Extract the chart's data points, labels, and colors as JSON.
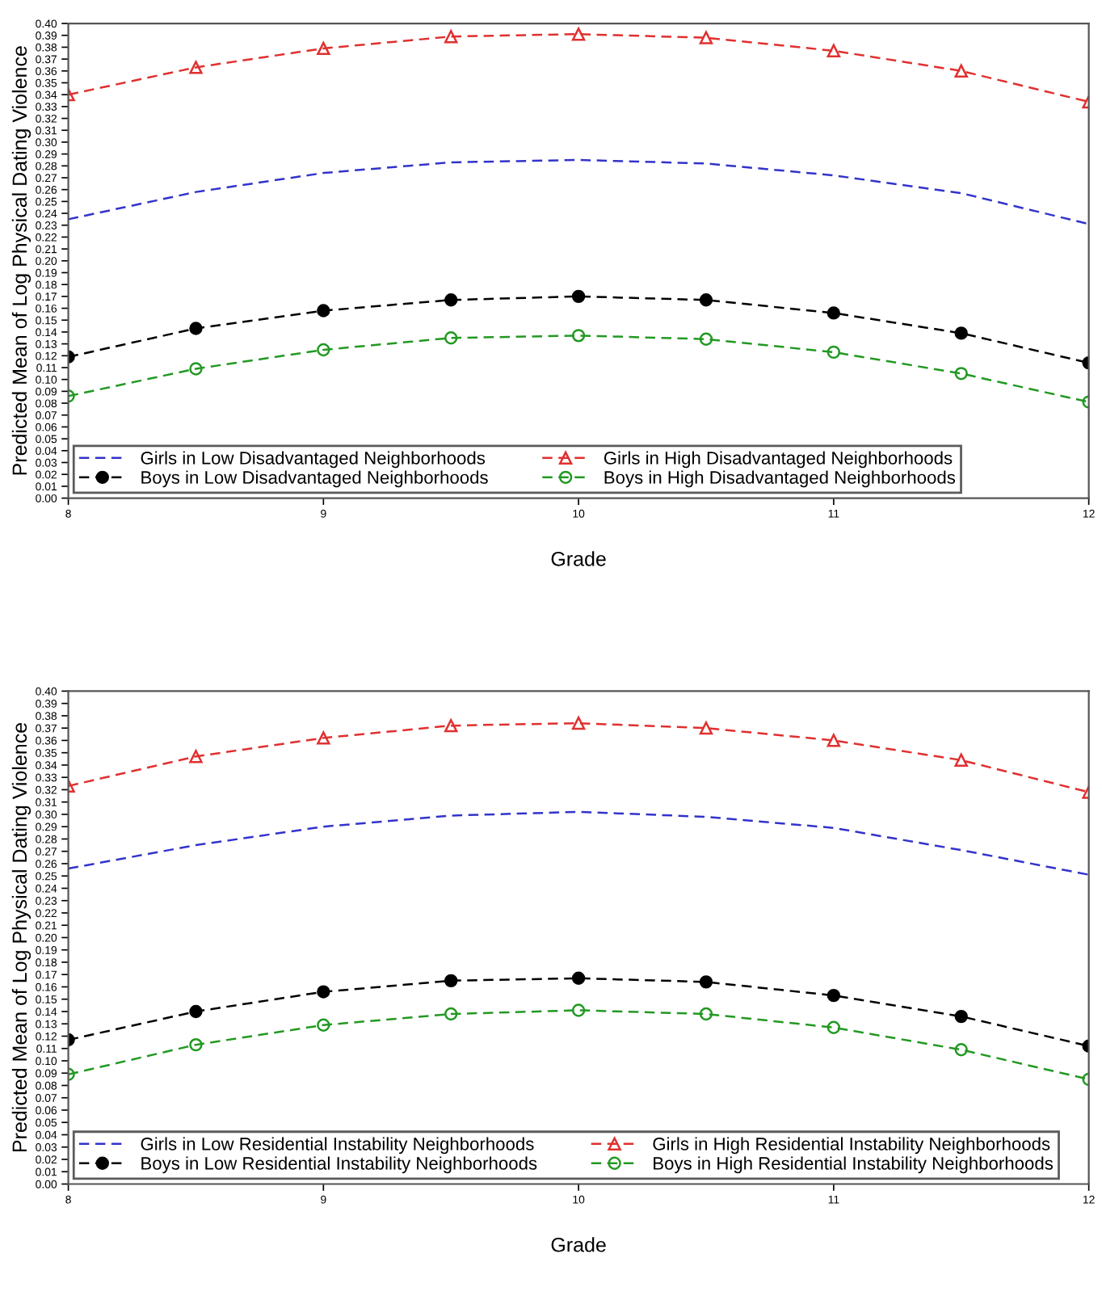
{
  "chart_data": [
    {
      "type": "line",
      "xlabel": "Grade",
      "ylabel": "Predicted Mean of Log Physical Dating Violence",
      "legend": "bottom left",
      "grid": false,
      "line_style": "dashed",
      "x": [
        8,
        8.5,
        9,
        9.5,
        10,
        10.5,
        11,
        11.5,
        12
      ],
      "xlim": [
        8,
        12
      ],
      "xticks": [
        8,
        9,
        10,
        11,
        12
      ],
      "ylim": [
        0,
        0.4
      ],
      "yticks": [
        {
          "value": 0,
          "label": "0.00"
        },
        {
          "value": 0.01,
          "label": "0.01"
        },
        {
          "value": 0.02,
          "label": "0.02"
        },
        {
          "value": 0.03,
          "label": "0.03"
        },
        {
          "value": 0.04,
          "label": "0.04"
        },
        {
          "value": 0.05,
          "label": "0.05"
        },
        {
          "value": 0.06,
          "label": "0.06"
        },
        {
          "value": 0.07,
          "label": "0.07"
        },
        {
          "value": 0.08,
          "label": "0.08"
        },
        {
          "value": 0.09,
          "label": "0.09"
        },
        {
          "value": 0.1,
          "label": "0.10"
        },
        {
          "value": 0.11,
          "label": "0.11"
        },
        {
          "value": 0.12,
          "label": "0.12"
        },
        {
          "value": 0.13,
          "label": "0.13"
        },
        {
          "value": 0.14,
          "label": "0.14"
        },
        {
          "value": 0.15,
          "label": "0.15"
        },
        {
          "value": 0.16,
          "label": "0.16"
        },
        {
          "value": 0.17,
          "label": "0.17"
        },
        {
          "value": 0.18,
          "label": "0.18"
        },
        {
          "value": 0.19,
          "label": "0.19"
        },
        {
          "value": 0.2,
          "label": "0.20"
        },
        {
          "value": 0.21,
          "label": "0.21"
        },
        {
          "value": 0.22,
          "label": "0.22"
        },
        {
          "value": 0.23,
          "label": "0.23"
        },
        {
          "value": 0.24,
          "label": "0.24"
        },
        {
          "value": 0.25,
          "label": "0.25"
        },
        {
          "value": 0.26,
          "label": "0.26"
        },
        {
          "value": 0.27,
          "label": "0.27"
        },
        {
          "value": 0.28,
          "label": "0.28"
        },
        {
          "value": 0.29,
          "label": "0.29"
        },
        {
          "value": 0.3,
          "label": "0.30"
        },
        {
          "value": 0.31,
          "label": "0.31"
        },
        {
          "value": 0.32,
          "label": "0.32"
        },
        {
          "value": 0.33,
          "label": "0.33"
        },
        {
          "value": 0.34,
          "label": "0.34"
        },
        {
          "value": 0.35,
          "label": "0.35"
        },
        {
          "value": 0.36,
          "label": "0.36"
        },
        {
          "value": 0.37,
          "label": "0.37"
        },
        {
          "value": 0.38,
          "label": "0.38"
        },
        {
          "value": 0.39,
          "label": "0.39"
        },
        {
          "value": 0.4,
          "label": "0.40"
        }
      ],
      "series": [
        {
          "name": "Girls in Low Disadvantaged Neighborhoods",
          "color": "#3333cc",
          "marker": "none",
          "values": [
            0.235,
            0.258,
            0.274,
            0.283,
            0.285,
            0.282,
            0.272,
            0.257,
            0.231
          ]
        },
        {
          "name": "Boys in Low Disadvantaged Neighborhoods",
          "color": "#000000",
          "marker": "circle",
          "values": [
            0.119,
            0.143,
            0.158,
            0.167,
            0.17,
            0.167,
            0.156,
            0.139,
            0.114
          ]
        },
        {
          "name": "Girls in High Disadvantaged Neighborhoods",
          "color": "#e03030",
          "marker": "triangle",
          "values": [
            0.34,
            0.363,
            0.379,
            0.389,
            0.391,
            0.388,
            0.377,
            0.36,
            0.334
          ]
        },
        {
          "name": "Boys in High Disadvantaged Neighborhoods",
          "color": "#229922",
          "marker": "circle",
          "values": [
            0.086,
            0.109,
            0.125,
            0.135,
            0.137,
            0.134,
            0.123,
            0.105,
            0.081
          ]
        }
      ]
    },
    {
      "type": "line",
      "xlabel": "Grade",
      "ylabel": "Predicted Mean of Log Physical Dating Violence",
      "legend": "bottom left",
      "grid": false,
      "line_style": "dashed",
      "x": [
        8,
        8.5,
        9,
        9.5,
        10,
        10.5,
        11,
        11.5,
        12
      ],
      "xlim": [
        8,
        12
      ],
      "xticks": [
        8,
        9,
        10,
        11,
        12
      ],
      "ylim": [
        0,
        0.4
      ],
      "yticks": [
        {
          "value": 0,
          "label": "0.00"
        },
        {
          "value": 0.01,
          "label": "0.01"
        },
        {
          "value": 0.02,
          "label": "0.02"
        },
        {
          "value": 0.03,
          "label": "0.03"
        },
        {
          "value": 0.04,
          "label": "0.04"
        },
        {
          "value": 0.05,
          "label": "0.05"
        },
        {
          "value": 0.06,
          "label": "0.06"
        },
        {
          "value": 0.07,
          "label": "0.07"
        },
        {
          "value": 0.08,
          "label": "0.08"
        },
        {
          "value": 0.09,
          "label": "0.09"
        },
        {
          "value": 0.1,
          "label": "0.10"
        },
        {
          "value": 0.11,
          "label": "0.11"
        },
        {
          "value": 0.12,
          "label": "0.12"
        },
        {
          "value": 0.13,
          "label": "0.13"
        },
        {
          "value": 0.14,
          "label": "0.14"
        },
        {
          "value": 0.15,
          "label": "0.15"
        },
        {
          "value": 0.16,
          "label": "0.16"
        },
        {
          "value": 0.17,
          "label": "0.17"
        },
        {
          "value": 0.18,
          "label": "0.18"
        },
        {
          "value": 0.19,
          "label": "0.19"
        },
        {
          "value": 0.2,
          "label": "0.20"
        },
        {
          "value": 0.21,
          "label": "0.21"
        },
        {
          "value": 0.22,
          "label": "0.22"
        },
        {
          "value": 0.23,
          "label": "0.23"
        },
        {
          "value": 0.24,
          "label": "0.24"
        },
        {
          "value": 0.25,
          "label": "0.25"
        },
        {
          "value": 0.26,
          "label": "0.26"
        },
        {
          "value": 0.27,
          "label": "0.27"
        },
        {
          "value": 0.28,
          "label": "0.28"
        },
        {
          "value": 0.29,
          "label": "0.29"
        },
        {
          "value": 0.3,
          "label": "0.30"
        },
        {
          "value": 0.31,
          "label": "0.31"
        },
        {
          "value": 0.32,
          "label": "0.32"
        },
        {
          "value": 0.33,
          "label": "0.33"
        },
        {
          "value": 0.34,
          "label": "0.34"
        },
        {
          "value": 0.35,
          "label": "0.35"
        },
        {
          "value": 0.36,
          "label": "0.36"
        },
        {
          "value": 0.37,
          "label": "0.37"
        },
        {
          "value": 0.38,
          "label": "0.38"
        },
        {
          "value": 0.39,
          "label": "0.39"
        },
        {
          "value": 0.4,
          "label": "0.40"
        }
      ],
      "series": [
        {
          "name": "Girls in Low Residential Instability Neighborhoods",
          "color": "#3333cc",
          "marker": "none",
          "values": [
            0.256,
            0.275,
            0.29,
            0.299,
            0.302,
            0.298,
            0.289,
            0.271,
            0.251
          ]
        },
        {
          "name": "Boys in Low Residential Instability Neighborhoods",
          "color": "#000000",
          "marker": "circle",
          "values": [
            0.117,
            0.14,
            0.156,
            0.165,
            0.167,
            0.164,
            0.153,
            0.136,
            0.112
          ]
        },
        {
          "name": "Girls in High Residential Instability Neighborhoods",
          "color": "#e03030",
          "marker": "triangle",
          "values": [
            0.323,
            0.347,
            0.362,
            0.372,
            0.374,
            0.37,
            0.36,
            0.344,
            0.318
          ]
        },
        {
          "name": "Boys in High Residential Instability Neighborhoods",
          "color": "#229922",
          "marker": "circle",
          "values": [
            0.089,
            0.113,
            0.129,
            0.138,
            0.141,
            0.138,
            0.127,
            0.109,
            0.085
          ]
        }
      ]
    }
  ]
}
